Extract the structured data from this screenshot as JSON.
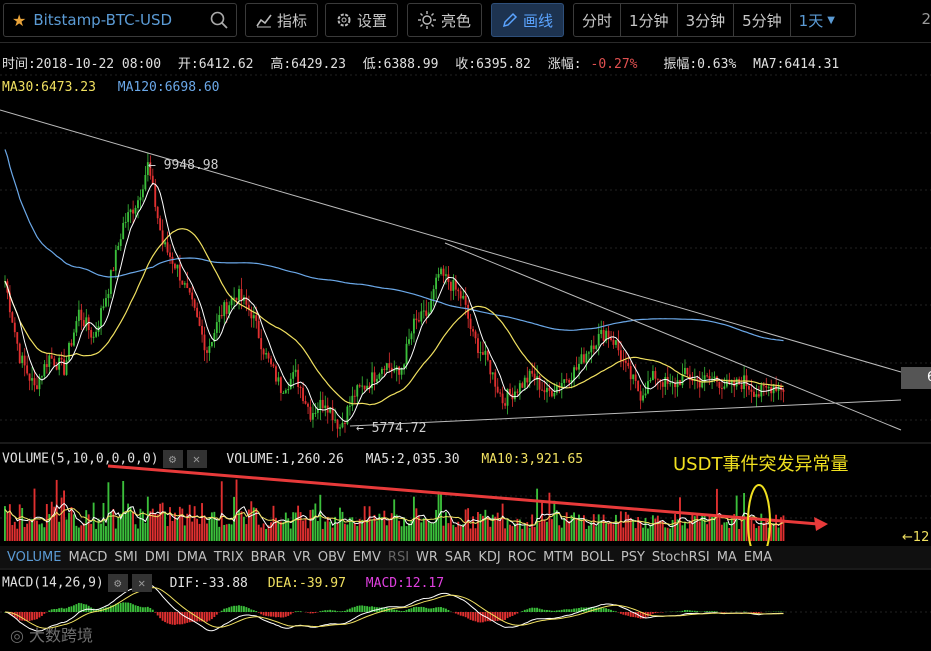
{
  "toolbar": {
    "symbol": "Bitstamp-BTC-USD",
    "indicators_label": "指标",
    "settings_label": "设置",
    "theme_label": "亮色",
    "draw_label": "画线",
    "timeframes": [
      "分时",
      "1分钟",
      "3分钟",
      "5分钟",
      "1天"
    ],
    "edge_text": "2"
  },
  "info": {
    "time": "时间:2018-10-22 08:00",
    "open": "开:6412.62",
    "high": "高:6429.23",
    "low": "低:6388.99",
    "close": "收:6395.82",
    "change_label": "涨幅:",
    "change_value": "-0.27%",
    "amplitude": "振幅:0.63%",
    "ma7": "MA7:6414.31",
    "ma30": "MA30:6473.23",
    "ma120": "MA120:6698.60"
  },
  "volume_header": {
    "label": "VOLUME(5,10,0,0,0,0)",
    "volume": "VOLUME:1,260.26",
    "ma5": "MA5:2,035.30",
    "ma10": "MA10:3,921.65"
  },
  "annotation": "USDT事件突发异常量",
  "indicator_tabs": [
    "VOLUME",
    "MACD",
    "SMI",
    "DMI",
    "DMA",
    "TRIX",
    "BRAR",
    "VR",
    "OBV",
    "EMV",
    "RSI",
    "WR",
    "SAR",
    "KDJ",
    "ROC",
    "MTM",
    "BOLL",
    "PSY",
    "StochRSI",
    "MA",
    "EMA"
  ],
  "macd_header": {
    "label": "MACD(14,26,9)",
    "dif": "DIF:-33.88",
    "dea": "DEA:-39.97",
    "macd": "MACD:12.17"
  },
  "watermark": "大数跨境",
  "price_tag": "6",
  "vol_tag": "←12",
  "colors": {
    "up": "#3bbf3b",
    "down": "#e03030",
    "ma7": "#ffffff",
    "ma30": "#f0e060",
    "ma120": "#6ba8e8",
    "trend": "#bbbbbb",
    "arrow": "#e83a3a",
    "ellipse": "#f0e020"
  },
  "chart_data": {
    "type": "candlestick",
    "price_annotations": {
      "high": "← 9948.98",
      "low": "← 5774.72"
    },
    "range_high": 9948.98,
    "range_low": 5774.72,
    "anchors": [
      [
        0,
        8100
      ],
      [
        6,
        6900
      ],
      [
        12,
        6400
      ],
      [
        18,
        6900
      ],
      [
        24,
        6700
      ],
      [
        30,
        7600
      ],
      [
        36,
        7200
      ],
      [
        42,
        8000
      ],
      [
        48,
        9000
      ],
      [
        54,
        9400
      ],
      [
        58,
        9948.98
      ],
      [
        64,
        8700
      ],
      [
        70,
        8300
      ],
      [
        76,
        7700
      ],
      [
        82,
        7000
      ],
      [
        88,
        7600
      ],
      [
        94,
        7900
      ],
      [
        100,
        7600
      ],
      [
        106,
        6900
      ],
      [
        112,
        6400
      ],
      [
        118,
        6600
      ],
      [
        124,
        6000
      ],
      [
        130,
        6200
      ],
      [
        136,
        5774.72
      ],
      [
        142,
        6300
      ],
      [
        148,
        6500
      ],
      [
        154,
        6800
      ],
      [
        160,
        6600
      ],
      [
        166,
        7400
      ],
      [
        172,
        7600
      ],
      [
        176,
        8200
      ],
      [
        180,
        8100
      ],
      [
        186,
        7800
      ],
      [
        190,
        7200
      ],
      [
        196,
        6800
      ],
      [
        202,
        6200
      ],
      [
        208,
        6400
      ],
      [
        214,
        6600
      ],
      [
        220,
        6300
      ],
      [
        226,
        6500
      ],
      [
        232,
        6700
      ],
      [
        238,
        7100
      ],
      [
        244,
        7300
      ],
      [
        248,
        7100
      ],
      [
        252,
        6700
      ],
      [
        258,
        6300
      ],
      [
        264,
        6600
      ],
      [
        270,
        6400
      ],
      [
        276,
        6600
      ],
      [
        282,
        6500
      ],
      [
        288,
        6550
      ],
      [
        294,
        6400
      ],
      [
        300,
        6500
      ],
      [
        306,
        6300
      ],
      [
        312,
        6450
      ],
      [
        316,
        6400
      ]
    ]
  }
}
